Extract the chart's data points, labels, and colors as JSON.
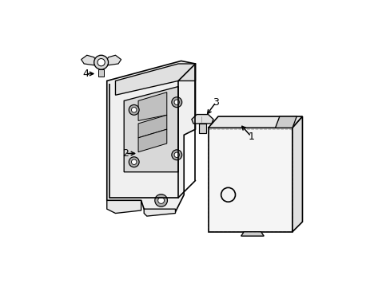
{
  "background_color": "#ffffff",
  "line_color": "#000000",
  "line_width": 1.2,
  "fig_width": 4.89,
  "fig_height": 3.6,
  "dpi": 100
}
